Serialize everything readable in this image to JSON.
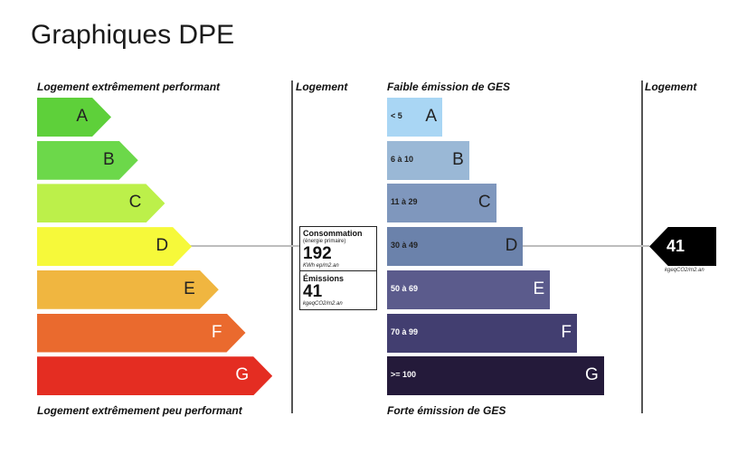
{
  "page": {
    "title": "Graphiques DPE"
  },
  "energy": {
    "header_top": "Logement extrêmement performant",
    "header_bottom": "Logement extrêmement peu performant",
    "column_label": "Logement",
    "classes": [
      {
        "letter": "A",
        "color": "#5ed03a",
        "level": 1
      },
      {
        "letter": "B",
        "color": "#6cd84a",
        "level": 2
      },
      {
        "letter": "C",
        "color": "#bcf04a",
        "level": 3
      },
      {
        "letter": "D",
        "color": "#f6f93a",
        "level": 4
      },
      {
        "letter": "E",
        "color": "#f0b640",
        "level": 5
      },
      {
        "letter": "F",
        "color": "#ea6a2e",
        "level": 6
      },
      {
        "letter": "G",
        "color": "#e42d22",
        "level": 7
      }
    ],
    "current_class": "D",
    "consumption": {
      "title": "Consommation",
      "subtitle": "(énergie primaire)",
      "value": "192",
      "unit": "KWh ep/m2.an"
    },
    "emissions": {
      "title": "Émissions",
      "value": "41",
      "unit": "kgeqCO2/m2.an"
    }
  },
  "ges": {
    "header_top": "Faible émission de GES",
    "header_bottom": "Forte émission de GES",
    "column_label": "Logement",
    "classes": [
      {
        "letter": "A",
        "range": "< 5",
        "color": "#a9d6f4",
        "level": 1
      },
      {
        "letter": "B",
        "range": "6 à 10",
        "color": "#9ab8d6",
        "level": 2
      },
      {
        "letter": "C",
        "range": "11 à 29",
        "color": "#7f97bd",
        "level": 3
      },
      {
        "letter": "D",
        "range": "30 à 49",
        "color": "#6b82ab",
        "level": 4
      },
      {
        "letter": "E",
        "range": "50 à 69",
        "color": "#5b5b8c",
        "level": 5
      },
      {
        "letter": "F",
        "range": "70 à 99",
        "color": "#423e70",
        "level": 6
      },
      {
        "letter": "G",
        "range": ">= 100",
        "color": "#241a3a",
        "level": 7
      }
    ],
    "current_class": "D",
    "marker_value": "41",
    "marker_unit": "kgeqCO2/m2.an"
  }
}
